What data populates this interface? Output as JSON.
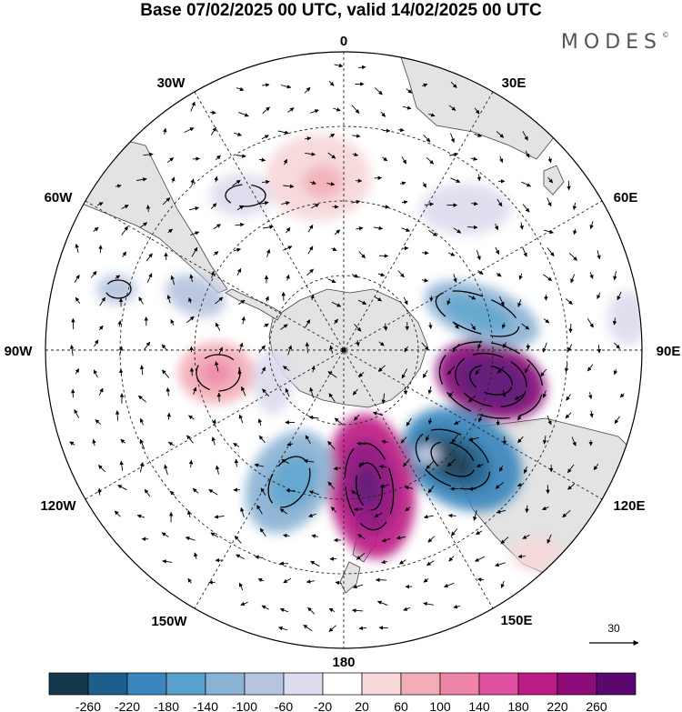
{
  "title": "Base 07/02/2025 00 UTC, valid 14/02/2025 00 UTC",
  "brand": "MODES",
  "brand_mark": "©",
  "longitude_labels": [
    "0",
    "30E",
    "60E",
    "90E",
    "120E",
    "150E",
    "180",
    "150W",
    "120W",
    "90W",
    "60W",
    "30W"
  ],
  "reference_vector": {
    "label": "30"
  },
  "colorbar": {
    "ticks": [
      "-260",
      "-220",
      "-180",
      "-140",
      "-100",
      "-60",
      "-20",
      "20",
      "60",
      "100",
      "140",
      "180",
      "220",
      "260"
    ],
    "colors": [
      "#15384f",
      "#1d5f8b",
      "#3a86bd",
      "#5aa1cc",
      "#8ab2d4",
      "#b7c4df",
      "#dcdcee",
      "#ffffff",
      "#f7d7d9",
      "#f2adb6",
      "#ef84a9",
      "#e1509e",
      "#bd1b84",
      "#8c0c7a",
      "#5a0870"
    ]
  },
  "colors": {
    "land": "#e3e3e3",
    "coast": "#444444",
    "grid": "#222222"
  }
}
